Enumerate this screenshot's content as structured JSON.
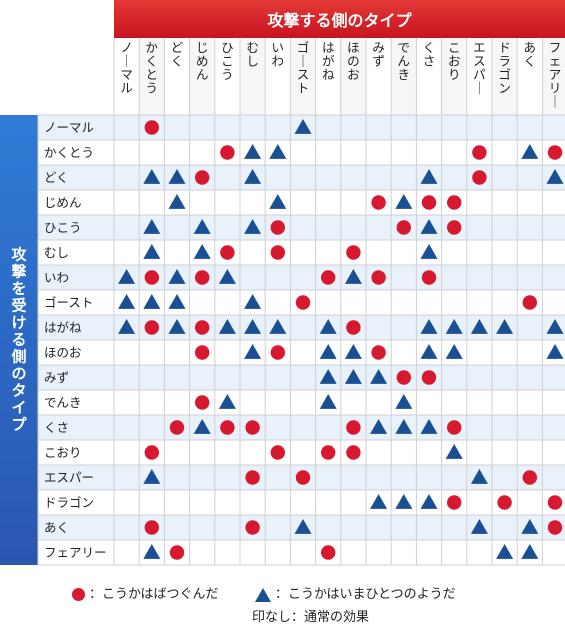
{
  "header": {
    "attacking_title": "攻撃する側のタイプ",
    "defending_title": "攻撃を受ける側のタイプ"
  },
  "types": [
    "ノーマル",
    "かくとう",
    "どく",
    "じめん",
    "ひこう",
    "むし",
    "いわ",
    "ゴースト",
    "はがね",
    "ほのお",
    "みず",
    "でんき",
    "くさ",
    "こおり",
    "エスパー",
    "ドラゴン",
    "あく",
    "フェアリー"
  ],
  "legend": {
    "dot_label": "：こうかはばつぐんだ",
    "triangle_label": "：こうかはいまひとつのようだ",
    "none_label": "印なし：通常の効果"
  },
  "colors": {
    "super_effective": "#d6192e",
    "not_very_effective": "#1b4f93",
    "header_red": "#d7282f",
    "side_blue": "#2f6cc4"
  },
  "matrix": [
    [
      "",
      "O",
      "",
      "",
      "",
      "",
      "",
      "T",
      "",
      "",
      "",
      "",
      "",
      "",
      "",
      "",
      "",
      ""
    ],
    [
      "",
      "",
      "",
      "",
      "O",
      "T",
      "T",
      "",
      "",
      "",
      "",
      "",
      "",
      "",
      "O",
      "",
      "T",
      "O"
    ],
    [
      "",
      "T",
      "T",
      "O",
      "",
      "T",
      "",
      "",
      "",
      "",
      "",
      "",
      "T",
      "",
      "O",
      "",
      "",
      "T"
    ],
    [
      "",
      "",
      "T",
      "",
      "",
      "",
      "T",
      "",
      "",
      "",
      "O",
      "T",
      "O",
      "O",
      "",
      "",
      "",
      ""
    ],
    [
      "",
      "T",
      "",
      "T",
      "",
      "T",
      "O",
      "",
      "",
      "",
      "",
      "O",
      "T",
      "O",
      "",
      "",
      "",
      ""
    ],
    [
      "",
      "T",
      "",
      "T",
      "O",
      "",
      "O",
      "",
      "",
      "O",
      "",
      "",
      "T",
      "",
      "",
      "",
      "",
      ""
    ],
    [
      "T",
      "O",
      "T",
      "O",
      "T",
      "",
      "",
      "",
      "O",
      "T",
      "O",
      "",
      "O",
      "",
      "",
      "",
      "",
      ""
    ],
    [
      "T",
      "T",
      "T",
      "",
      "",
      "T",
      "",
      "O",
      "",
      "",
      "",
      "",
      "",
      "",
      "",
      "",
      "O",
      ""
    ],
    [
      "T",
      "O",
      "T",
      "O",
      "T",
      "T",
      "T",
      "",
      "T",
      "O",
      "",
      "",
      "T",
      "T",
      "T",
      "T",
      "",
      "T"
    ],
    [
      "",
      "",
      "",
      "O",
      "",
      "T",
      "O",
      "",
      "T",
      "T",
      "O",
      "",
      "T",
      "T",
      "",
      "",
      "",
      "T"
    ],
    [
      "",
      "",
      "",
      "",
      "",
      "",
      "",
      "",
      "T",
      "T",
      "T",
      "O",
      "O",
      "",
      "",
      "",
      "",
      ""
    ],
    [
      "",
      "",
      "",
      "O",
      "T",
      "",
      "",
      "",
      "T",
      "",
      "",
      "T",
      "",
      "",
      "",
      "",
      "",
      ""
    ],
    [
      "",
      "",
      "O",
      "T",
      "O",
      "O",
      "",
      "",
      "",
      "O",
      "T",
      "T",
      "T",
      "O",
      "",
      "",
      "",
      ""
    ],
    [
      "",
      "O",
      "",
      "",
      "",
      "",
      "O",
      "",
      "O",
      "O",
      "",
      "",
      "",
      "T",
      "",
      "",
      "",
      ""
    ],
    [
      "",
      "T",
      "",
      "",
      "",
      "O",
      "",
      "O",
      "",
      "",
      "",
      "",
      "",
      "",
      "T",
      "",
      "O",
      ""
    ],
    [
      "",
      "",
      "",
      "",
      "",
      "",
      "",
      "",
      "",
      "",
      "T",
      "T",
      "T",
      "O",
      "",
      "O",
      "",
      "O"
    ],
    [
      "",
      "O",
      "",
      "",
      "",
      "O",
      "",
      "T",
      "",
      "",
      "",
      "",
      "",
      "",
      "T",
      "",
      "T",
      "O"
    ],
    [
      "",
      "T",
      "O",
      "",
      "",
      "",
      "",
      "",
      "O",
      "",
      "",
      "",
      "",
      "",
      "",
      "T",
      "T",
      ""
    ]
  ]
}
